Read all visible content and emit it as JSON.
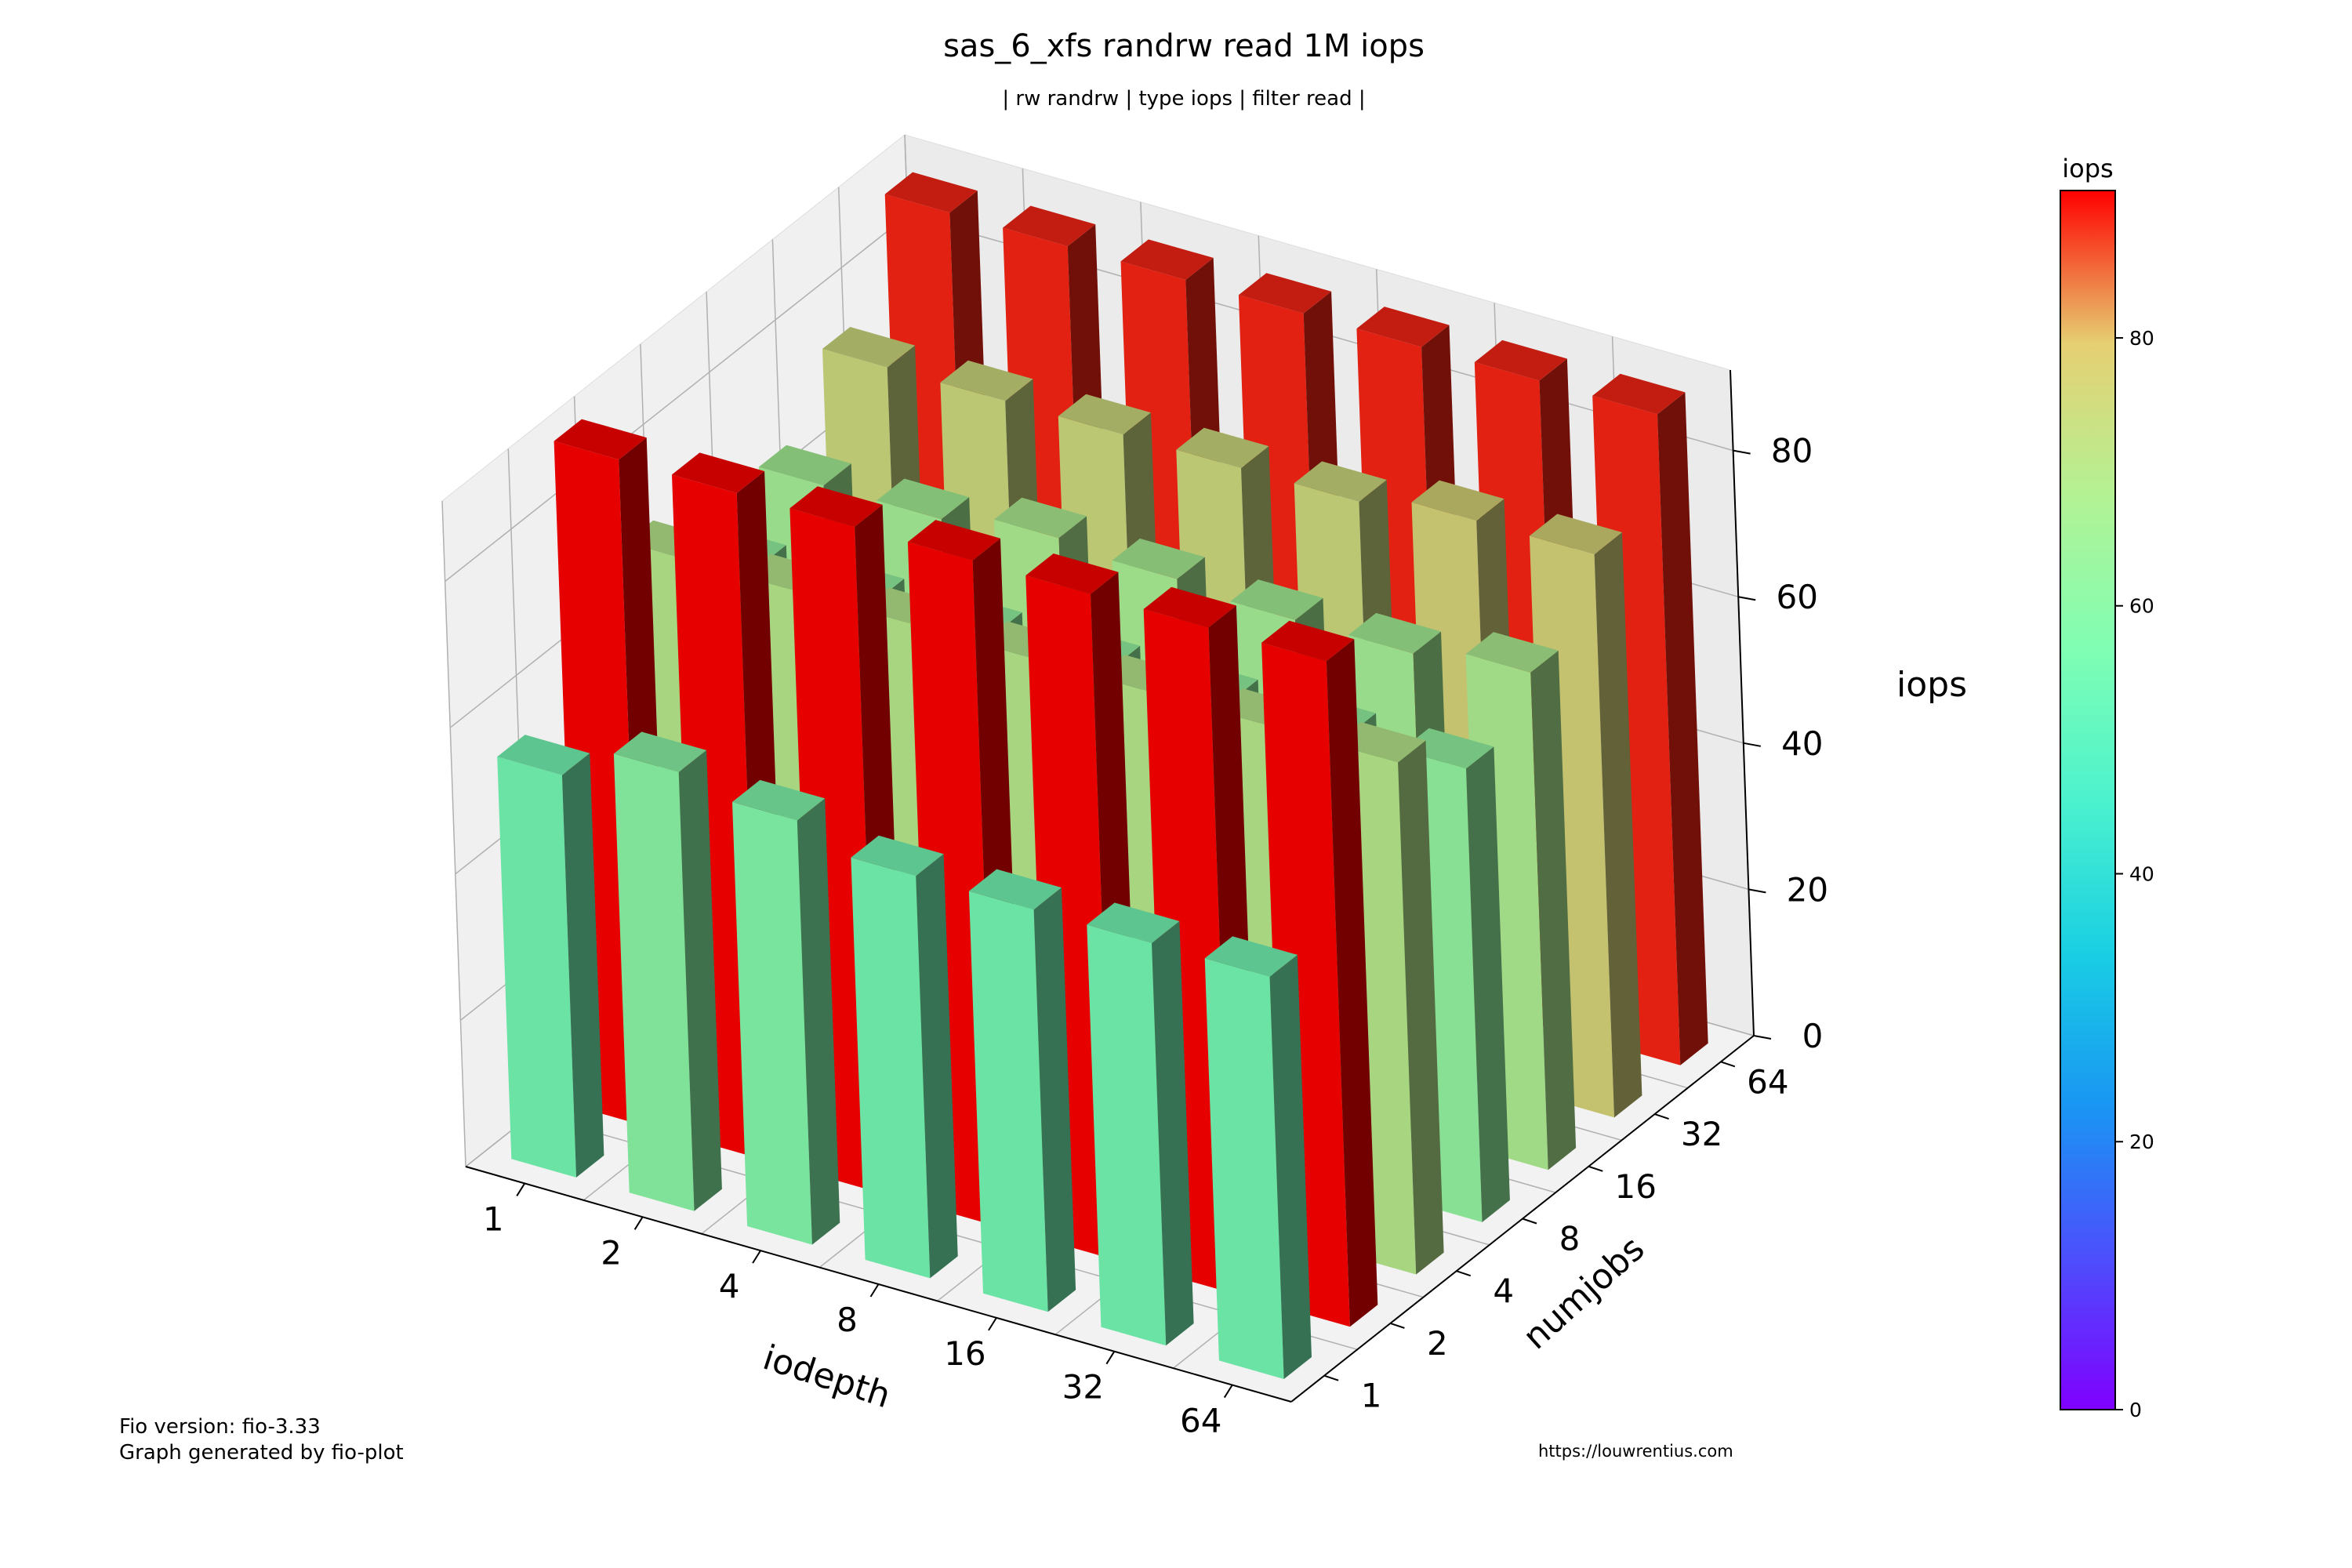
{
  "chart_data": {
    "type": "bar3d",
    "title": "sas_6_xfs randrw read 1M iops",
    "subtitle": "| rw randrw | type iops | filter read |",
    "xlabel": "iodepth",
    "ylabel": "numjobs",
    "zlabel": "iops",
    "x_categories": [
      "1",
      "2",
      "4",
      "8",
      "16",
      "32",
      "64"
    ],
    "y_categories": [
      "1",
      "2",
      "4",
      "8",
      "16",
      "32",
      "64"
    ],
    "z_ticks": [
      "0",
      "20",
      "40",
      "60",
      "80"
    ],
    "zlim": [
      0,
      91
    ],
    "values_by_numjobs": [
      {
        "numjobs": "1",
        "iops": [
          55,
          60,
          58,
          55,
          55,
          55,
          55
        ]
      },
      {
        "numjobs": "2",
        "iops": [
          91,
          91,
          91,
          91,
          91,
          91,
          91
        ]
      },
      {
        "numjobs": "4",
        "iops": [
          70,
          70,
          70,
          70,
          70,
          70,
          70
        ]
      },
      {
        "numjobs": "8",
        "iops": [
          62,
          62,
          62,
          62,
          62,
          62,
          62
        ]
      },
      {
        "numjobs": "16",
        "iops": [
          66,
          66,
          68,
          67,
          66,
          66,
          68
        ]
      },
      {
        "numjobs": "32",
        "iops": [
          75,
          75,
          75,
          75,
          75,
          77,
          77
        ]
      },
      {
        "numjobs": "64",
        "iops": [
          89,
          89,
          89,
          89,
          89,
          89,
          89
        ]
      }
    ],
    "colorbar": {
      "label": "iops",
      "ticks": [
        "0",
        "20",
        "40",
        "60",
        "80"
      ],
      "range": [
        0,
        91
      ],
      "colormap": "rainbow"
    }
  },
  "footer": {
    "fio_version": "Fio version: fio-3.33",
    "generator": "Graph generated by fio-plot",
    "url": "https://louwrentius.com"
  }
}
